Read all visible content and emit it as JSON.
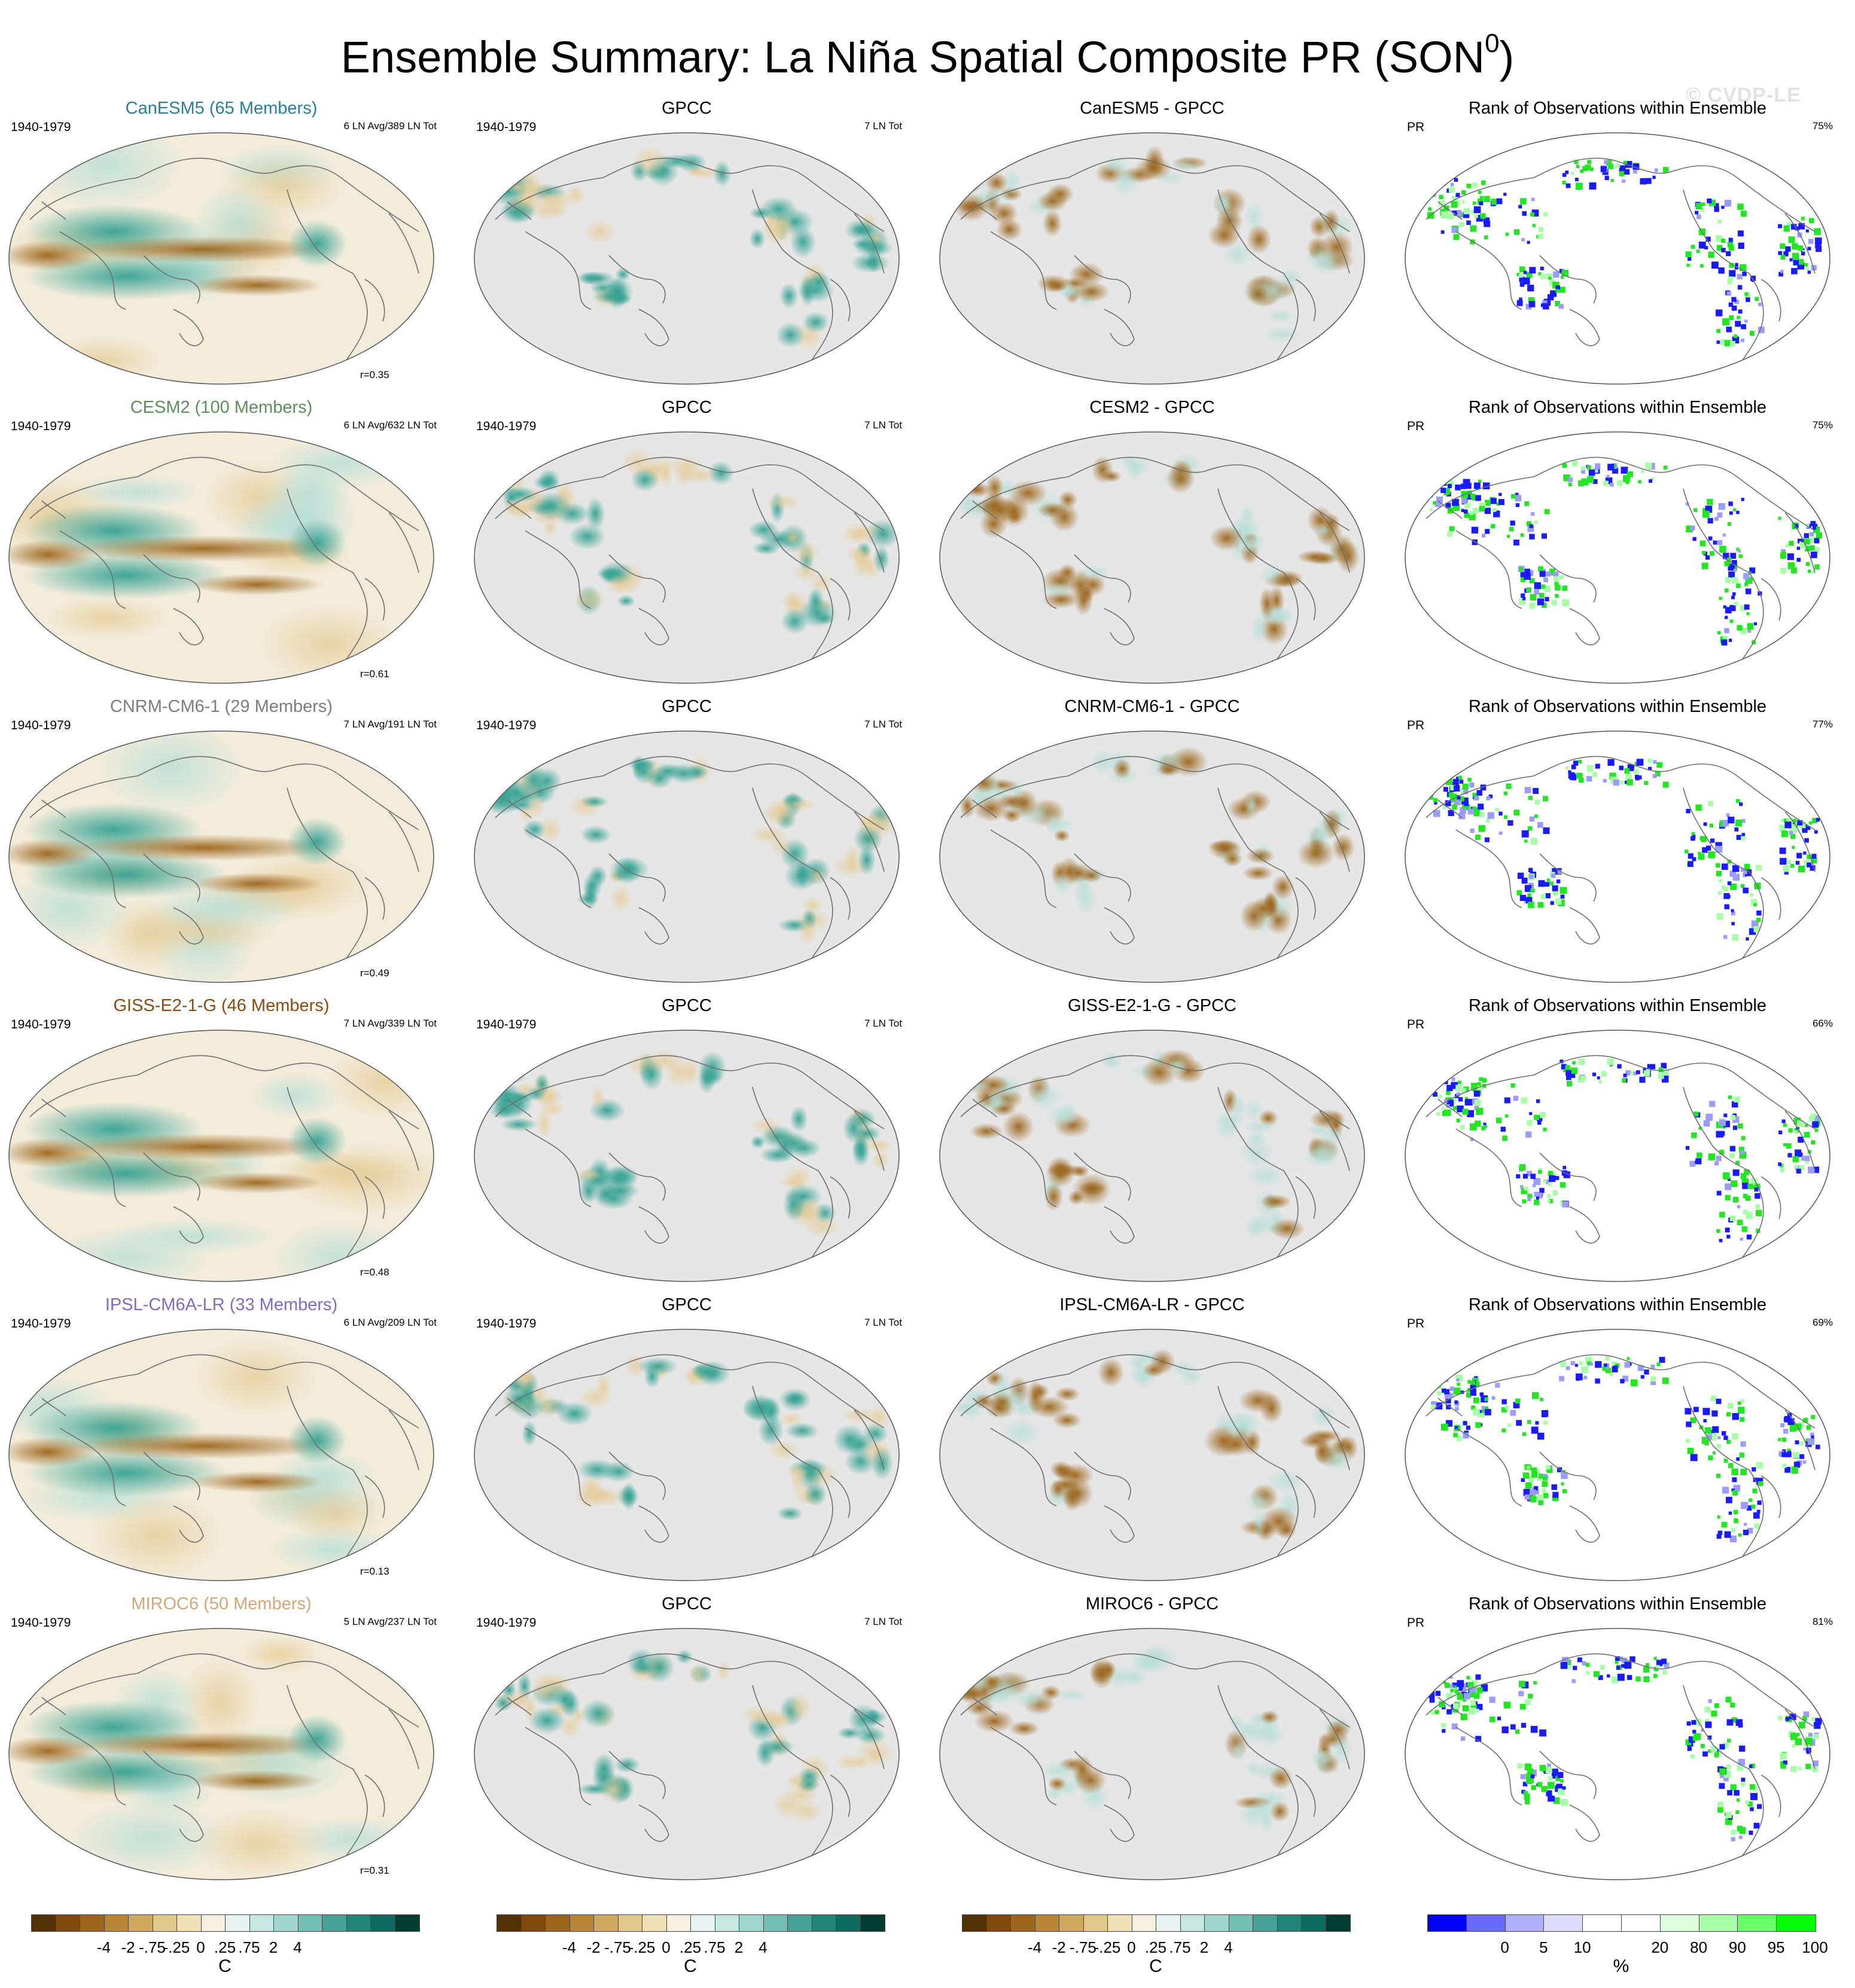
{
  "title": "Ensemble Summary: La Niña Spatial Composite PR (SON",
  "title_sup": "0",
  "title_tail": ")",
  "watermark": "© CVDP-LE",
  "colors": {
    "brown_dark": "#543005",
    "teal_dark": "#003c30",
    "land_mask": "#e6e6e6",
    "rank_low": "#0000ff",
    "rank_high": "#00ff00"
  },
  "rows": [
    {
      "model": "CanESM5 (65 Members)",
      "model_color": "#2a7f9a",
      "period": "1940-1979",
      "counts": "6 LN Avg/389 LN Tot",
      "corr": "r=0.35",
      "obs_title": "GPCC",
      "obs_period": "1940-1979",
      "obs_counts": "7 LN Tot",
      "diff_title": "CanESM5 - GPCC",
      "rank_title": "Rank of Observations within Ensemble",
      "rank_var": "PR",
      "rank_pct": "75%"
    },
    {
      "model": "CESM2 (100 Members)",
      "model_color": "#5c8f5c",
      "period": "1940-1979",
      "counts": "6 LN Avg/632 LN Tot",
      "corr": "r=0.61",
      "obs_title": "GPCC",
      "obs_period": "1940-1979",
      "obs_counts": "7 LN Tot",
      "diff_title": "CESM2 - GPCC",
      "rank_title": "Rank of Observations within Ensemble",
      "rank_var": "PR",
      "rank_pct": "75%"
    },
    {
      "model": "CNRM-CM6-1 (29 Members)",
      "model_color": "#7d7d7d",
      "period": "1940-1979",
      "counts": "7 LN Avg/191 LN Tot",
      "corr": "r=0.49",
      "obs_title": "GPCC",
      "obs_period": "1940-1979",
      "obs_counts": "7 LN Tot",
      "diff_title": "CNRM-CM6-1 - GPCC",
      "rank_title": "Rank of Observations within Ensemble",
      "rank_var": "PR",
      "rank_pct": "77%"
    },
    {
      "model": "GISS-E2-1-G (46 Members)",
      "model_color": "#8b4a12",
      "period": "1940-1979",
      "counts": "7 LN Avg/339 LN Tot",
      "corr": "r=0.48",
      "obs_title": "GPCC",
      "obs_period": "1940-1979",
      "obs_counts": "7 LN Tot",
      "diff_title": "GISS-E2-1-G - GPCC",
      "rank_title": "Rank of Observations within Ensemble",
      "rank_var": "PR",
      "rank_pct": "66%"
    },
    {
      "model": "IPSL-CM6A-LR (33 Members)",
      "model_color": "#8469c4",
      "period": "1940-1979",
      "counts": "6 LN Avg/209 LN Tot",
      "corr": "r=0.13",
      "obs_title": "GPCC",
      "obs_period": "1940-1979",
      "obs_counts": "7 LN Tot",
      "diff_title": "IPSL-CM6A-LR - GPCC",
      "rank_title": "Rank of Observations within Ensemble",
      "rank_var": "PR",
      "rank_pct": "69%"
    },
    {
      "model": "MIROC6 (50 Members)",
      "model_color": "#d2a77a",
      "period": "1940-1979",
      "counts": "5 LN Avg/237 LN Tot",
      "corr": "r=0.31",
      "obs_title": "GPCC",
      "obs_period": "1940-1979",
      "obs_counts": "7 LN Tot",
      "diff_title": "MIROC6 - GPCC",
      "rank_title": "Rank of Observations within Ensemble",
      "rank_var": "PR",
      "rank_pct": "81%"
    }
  ],
  "colorbar_anom": {
    "colors": [
      "#543005",
      "#7f4a0d",
      "#9c661c",
      "#b98537",
      "#cfa862",
      "#e2c88e",
      "#efe0b8",
      "#f6f0e0",
      "#e7f3f1",
      "#c7e7e2",
      "#a0d6ce",
      "#74c0b4",
      "#48a196",
      "#24847a",
      "#0d6a60",
      "#003c30"
    ],
    "ticks": [
      {
        "label": "-4",
        "pos": 2
      },
      {
        "label": "-2",
        "pos": 3
      },
      {
        "label": "-.75",
        "pos": 4
      },
      {
        "label": "-.25",
        "pos": 5
      },
      {
        "label": "0",
        "pos": 6
      },
      {
        "label": ".25",
        "pos": 7
      },
      {
        "label": ".75",
        "pos": 8
      },
      {
        "label": "2",
        "pos": 9
      },
      {
        "label": "4",
        "pos": 10
      }
    ],
    "unit": "C"
  },
  "colorbar_rank": {
    "colors": [
      "#0000ff",
      "#6a6aff",
      "#b0b0ff",
      "#dcdcff",
      "#ffffff",
      "#ffffff",
      "#dcffdc",
      "#aaffaa",
      "#6aff6a",
      "#00ff00"
    ],
    "ticks": [
      {
        "label": "0",
        "pos": 1
      },
      {
        "label": "5",
        "pos": 2
      },
      {
        "label": "10",
        "pos": 3
      },
      {
        "label": "20",
        "pos": 5
      },
      {
        "label": "80",
        "pos": 6
      },
      {
        "label": "90",
        "pos": 7
      },
      {
        "label": "95",
        "pos": 8
      },
      {
        "label": "100",
        "pos": 9
      }
    ],
    "unit": "%"
  }
}
